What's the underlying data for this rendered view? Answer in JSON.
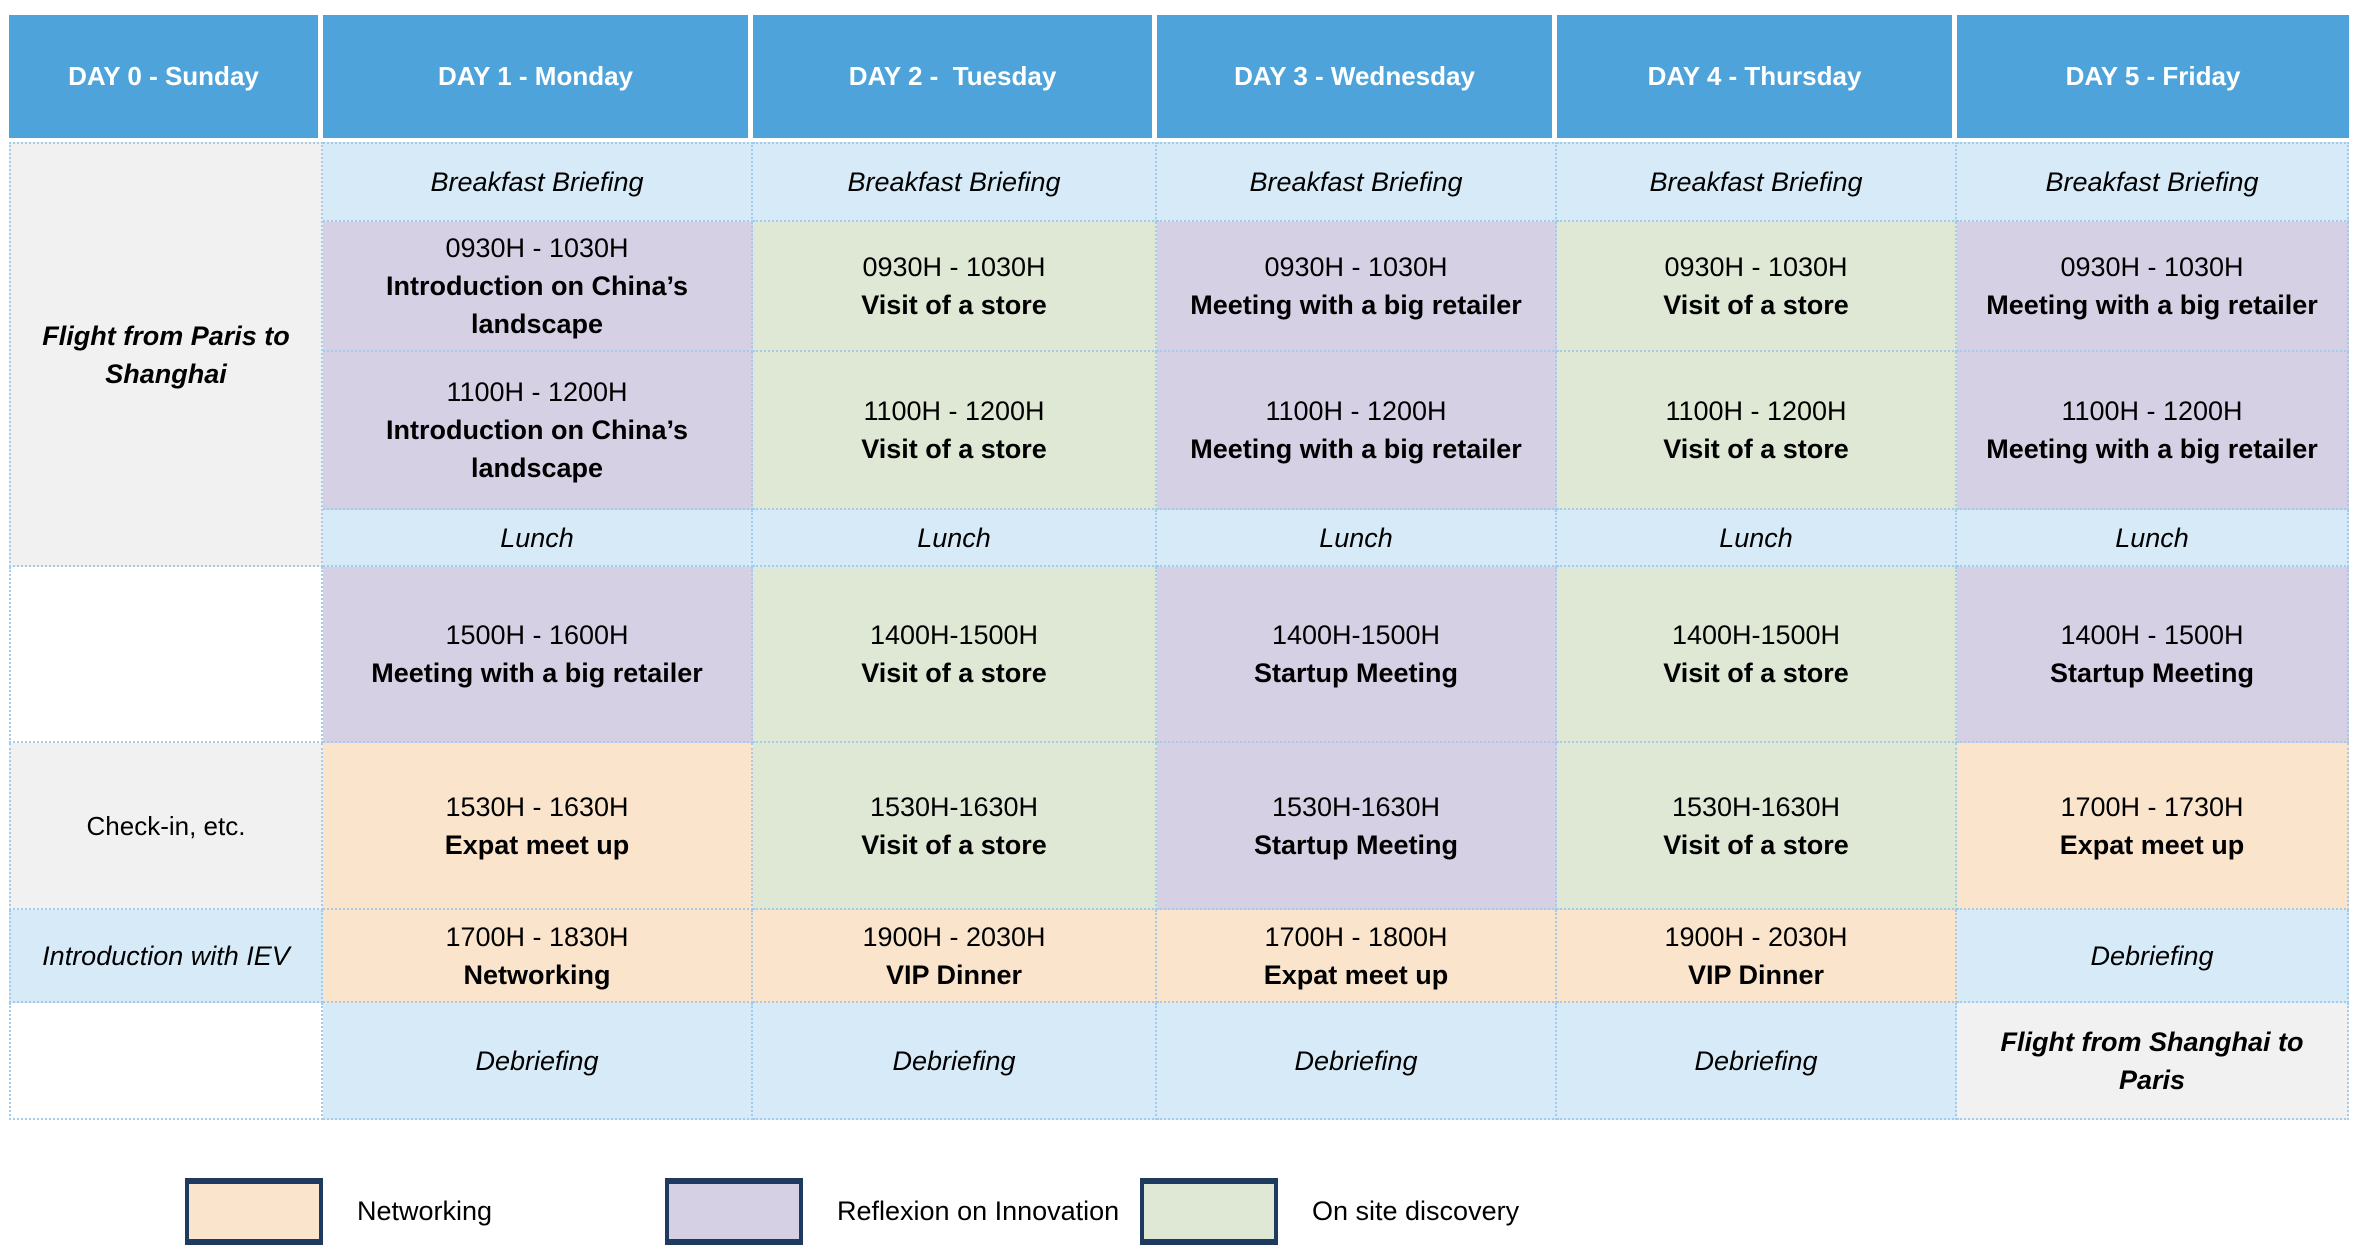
{
  "days": [
    {
      "header": "DAY 0 - Sunday",
      "flight": "Flight from Paris to Shanghai",
      "checkin": "Check-in, etc.",
      "intro_iev": "Introduction with IEV"
    },
    {
      "header": "DAY 1 - Monday",
      "breakfast": "Breakfast Briefing",
      "m1": {
        "time": "0930H - 1030H",
        "title": "Introduction on China’s landscape"
      },
      "m2": {
        "time": "1100H - 1200H",
        "title": "Introduction on China’s landscape"
      },
      "lunch": "Lunch",
      "a1": {
        "time": "1500H - 1600H",
        "title": "Meeting with a big retailer"
      },
      "a2": {
        "time": "1530H - 1630H",
        "title": "Expat meet up"
      },
      "eve": {
        "time": "1700H - 1830H",
        "title": "Networking"
      },
      "debriefing": "Debriefing"
    },
    {
      "header": "DAY 2 -  Tuesday",
      "breakfast": "Breakfast Briefing",
      "m1": {
        "time": "0930H - 1030H",
        "title": "Visit of a store"
      },
      "m2": {
        "time": "1100H - 1200H",
        "title": "Visit of a store"
      },
      "lunch": "Lunch",
      "a1": {
        "time": "1400H-1500H",
        "title": "Visit of a store"
      },
      "a2": {
        "time": "1530H-1630H",
        "title": "Visit of a store"
      },
      "eve": {
        "time": "1900H - 2030H",
        "title": "VIP Dinner"
      },
      "debriefing": "Debriefing"
    },
    {
      "header": "DAY 3 - Wednesday",
      "breakfast": "Breakfast Briefing",
      "m1": {
        "time": "0930H - 1030H",
        "title": "Meeting with a big retailer"
      },
      "m2": {
        "time": "1100H - 1200H",
        "title": "Meeting with a big retailer"
      },
      "lunch": "Lunch",
      "a1": {
        "time": "1400H-1500H",
        "title": "Startup Meeting"
      },
      "a2": {
        "time": "1530H-1630H",
        "title": "Startup Meeting"
      },
      "eve": {
        "time": "1700H - 1800H",
        "title": "Expat meet up"
      },
      "debriefing": "Debriefing"
    },
    {
      "header": "DAY 4 - Thursday",
      "breakfast": "Breakfast Briefing",
      "m1": {
        "time": "0930H - 1030H",
        "title": "Visit of a store"
      },
      "m2": {
        "time": "1100H - 1200H",
        "title": "Visit of a store"
      },
      "lunch": "Lunch",
      "a1": {
        "time": "1400H-1500H",
        "title": "Visit of a store"
      },
      "a2": {
        "time": "1530H-1630H",
        "title": "Visit of a store"
      },
      "eve": {
        "time": "1900H - 2030H",
        "title": "VIP Dinner"
      },
      "debriefing": "Debriefing"
    },
    {
      "header": "DAY 5 - Friday",
      "breakfast": "Breakfast Briefing",
      "m1": {
        "time": "0930H - 1030H",
        "title": "Meeting with a big retailer"
      },
      "m2": {
        "time": "1100H - 1200H",
        "title": "Meeting with a big retailer"
      },
      "lunch": "Lunch",
      "a1": {
        "time": "1400H - 1500H",
        "title": "Startup Meeting"
      },
      "a2": {
        "time": "1700H - 1730H",
        "title": "Expat meet up"
      },
      "debriefing": "Debriefing",
      "flight": "Flight from Shanghai to Paris"
    }
  ],
  "legend": {
    "items": [
      {
        "label": "Networking",
        "color": "#FAE5CC"
      },
      {
        "label": "Reflexion on Innovation",
        "color": "#D5D0E4"
      },
      {
        "label": "On site discovery",
        "color": "#DEE8D4"
      }
    ]
  },
  "colors": {
    "header_bg": "#4EA4DA",
    "header_text": "#FFFFFF",
    "plenary_blue": "#D7EAF7",
    "innovation_purple": "#D5D0E4",
    "discovery_green": "#DEE8D4",
    "networking_peach": "#FAE5CC",
    "neutral_gray": "#F1F1F1",
    "grid_dot": "#A5CBEA",
    "legend_border": "#1F3A5F"
  }
}
